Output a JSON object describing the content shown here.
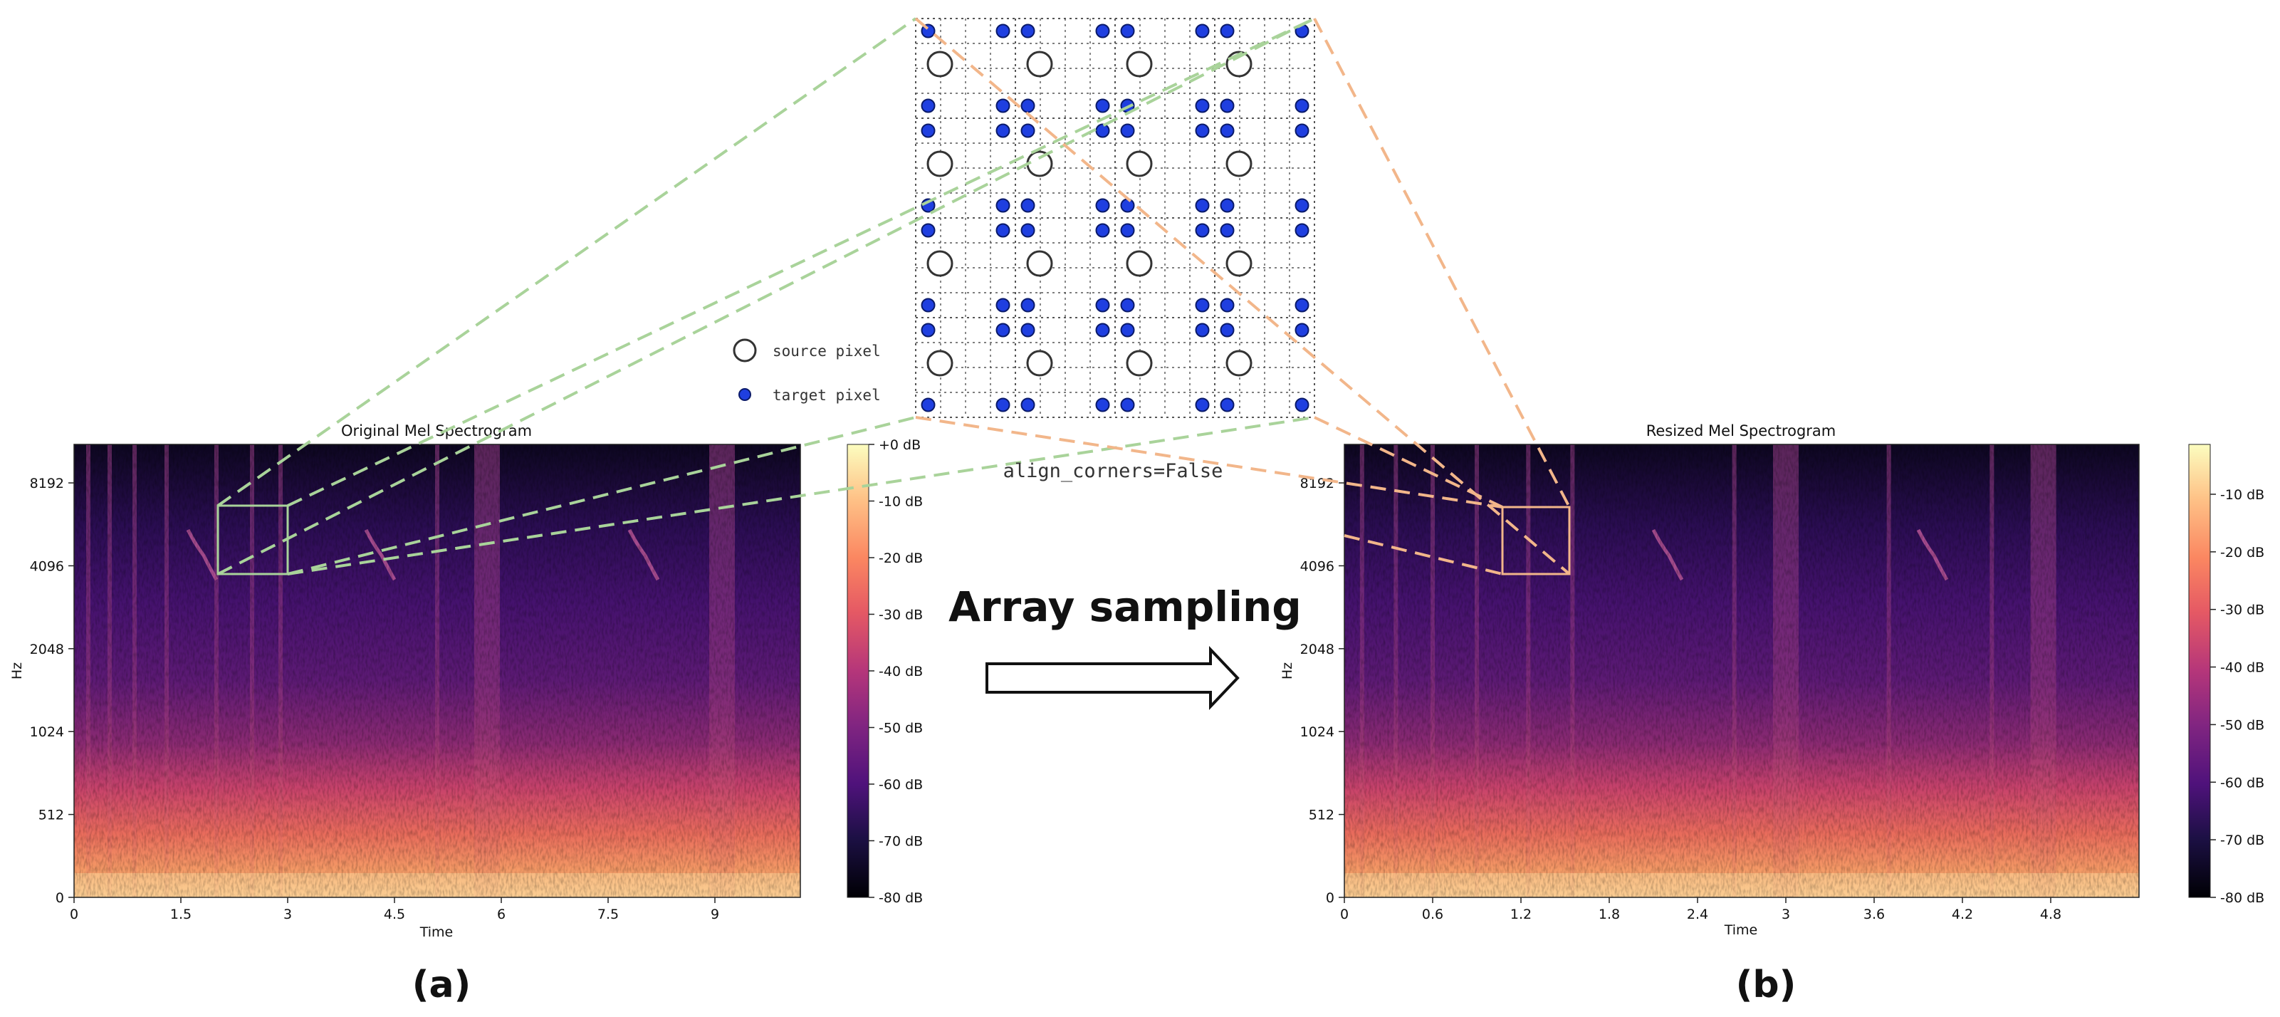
{
  "panels": {
    "a": {
      "title": "Original Mel Spectrogram",
      "xlabel": "Time",
      "ylabel": "Hz",
      "xticks": [
        "0",
        "1.5",
        "3",
        "4.5",
        "6",
        "7.5",
        "9"
      ],
      "yticks": [
        "0",
        "512",
        "1024",
        "2048",
        "4096",
        "8192"
      ],
      "colorbar_ticks": [
        "+0 dB",
        "-10 dB",
        "-20 dB",
        "-30 dB",
        "-40 dB",
        "-50 dB",
        "-60 dB",
        "-70 dB",
        "-80 dB"
      ],
      "caption": "(a)",
      "box_color": "#a9d39a",
      "vertical_bands_time": [
        0.2,
        0.5,
        0.85,
        1.3,
        2.0,
        2.5,
        2.9,
        5.1,
        5.8,
        9.1
      ],
      "broad_bands_time": [
        5.8,
        9.1
      ],
      "chirps_time": [
        1.6,
        4.1,
        7.8
      ]
    },
    "b": {
      "title": "Resized Mel Spectrogram",
      "xlabel": "Time",
      "ylabel": "Hz",
      "xticks": [
        "0",
        "0.6",
        "1.2",
        "1.8",
        "2.4",
        "3",
        "3.6",
        "4.2",
        "4.8"
      ],
      "yticks": [
        "0",
        "512",
        "1024",
        "2048",
        "4096",
        "8192"
      ],
      "colorbar_ticks": [
        "-10 dB",
        "-20 dB",
        "-30 dB",
        "-40 dB",
        "-50 dB",
        "-60 dB",
        "-70 dB",
        "-80 dB"
      ],
      "caption": "(b)",
      "box_color": "#f2b68a",
      "vertical_bands_time": [
        0.12,
        0.35,
        0.6,
        0.9,
        1.25,
        1.55,
        2.65,
        3.0,
        3.7,
        4.4,
        4.75
      ],
      "broad_bands_time": [
        3.0,
        4.75
      ],
      "chirps_time": [
        2.1,
        3.9
      ]
    }
  },
  "grid": {
    "legend_source": "source pixel",
    "legend_target": "target pixel",
    "note": "align_corners=False",
    "source_color": "#ffffff",
    "target_color": "#1f3fe0"
  },
  "arrow_label": "Array sampling",
  "colors": {
    "green_lines": "#a9d39a",
    "orange_lines": "#f2b68a"
  }
}
